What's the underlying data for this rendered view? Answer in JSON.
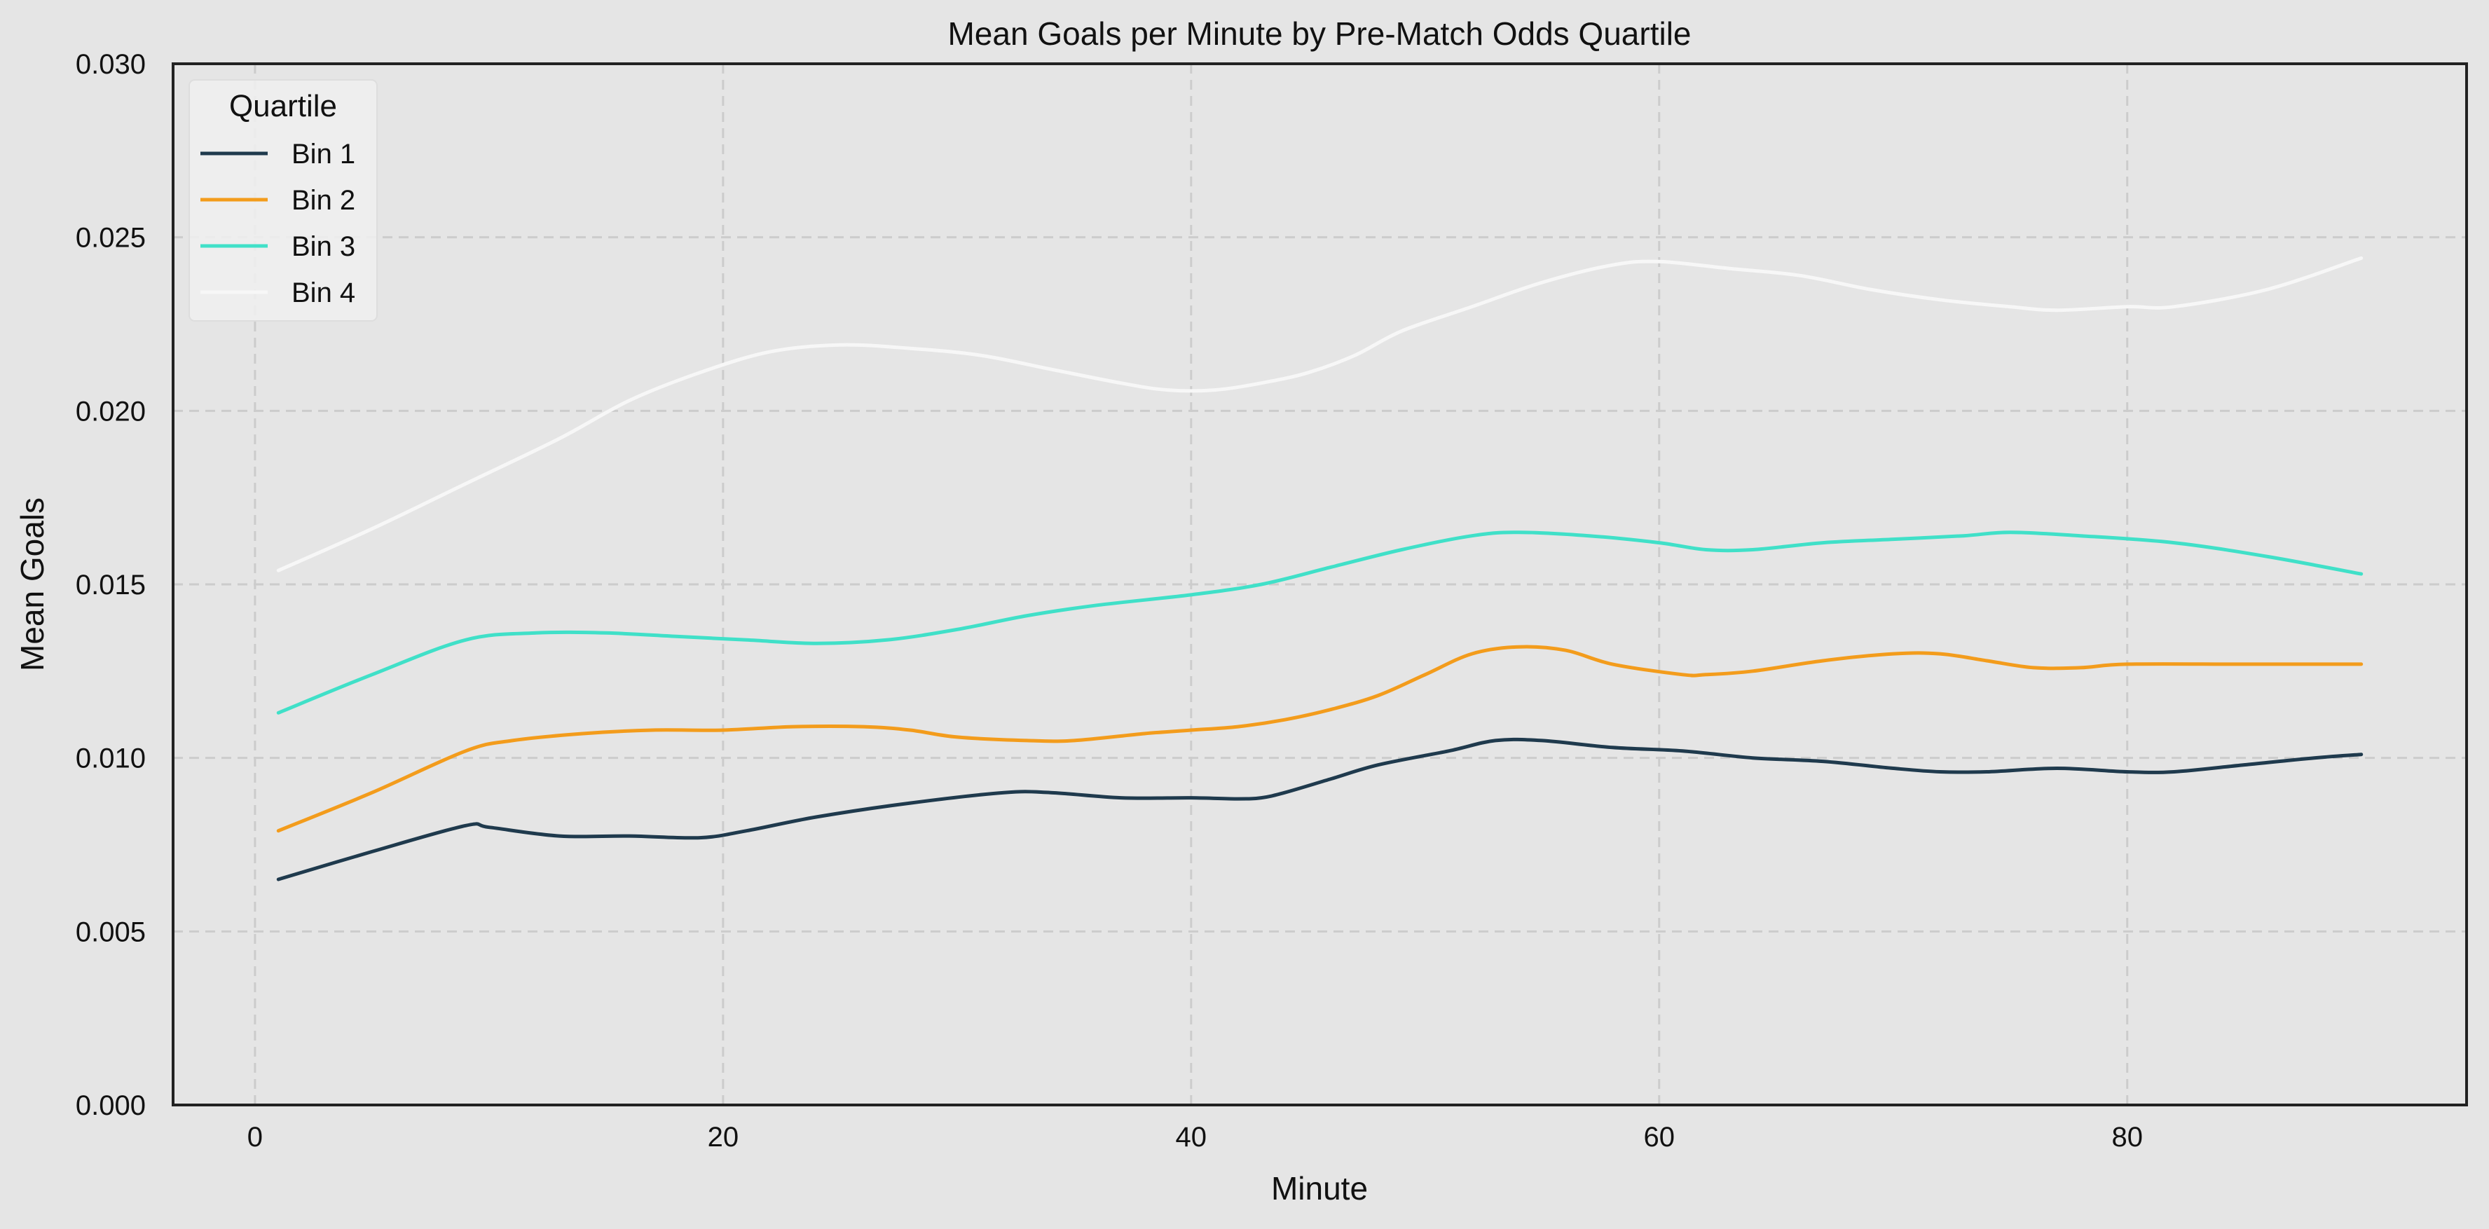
{
  "chart_data": {
    "type": "line",
    "title": "Mean Goals per Minute by Pre-Match Odds Quartile",
    "xlabel": "Minute",
    "ylabel": "Mean Goals",
    "xlim": [
      -3.5,
      94.5
    ],
    "ylim": [
      0.0,
      0.03
    ],
    "xticks": [
      0,
      20,
      40,
      60,
      80
    ],
    "xtick_labels": [
      "0",
      "20",
      "40",
      "60",
      "80"
    ],
    "yticks": [
      0.0,
      0.005,
      0.01,
      0.015,
      0.02,
      0.025,
      0.03
    ],
    "ytick_labels": [
      "0.000",
      "0.005",
      "0.010",
      "0.015",
      "0.020",
      "0.025",
      "0.030"
    ],
    "grid": true,
    "legend": {
      "title": "Quartile",
      "position": "top-left"
    },
    "series": [
      {
        "name": "Bin 1",
        "color": "#1f3a4d",
        "x": [
          1,
          5,
          9,
          10,
          13,
          16,
          19,
          21,
          24,
          28,
          32,
          34,
          37,
          40,
          42,
          43,
          44,
          46,
          48,
          51,
          53,
          55,
          58,
          61,
          64,
          67,
          70,
          72,
          74,
          77,
          80,
          82,
          85,
          88,
          90
        ],
        "y": [
          0.0065,
          0.0073,
          0.00805,
          0.008,
          0.00775,
          0.00775,
          0.0077,
          0.0079,
          0.0083,
          0.0087,
          0.009,
          0.009,
          0.00885,
          0.00885,
          0.00882,
          0.00885,
          0.009,
          0.0094,
          0.0098,
          0.0102,
          0.0105,
          0.0105,
          0.0103,
          0.0102,
          0.01,
          0.0099,
          0.0097,
          0.0096,
          0.0096,
          0.0097,
          0.0096,
          0.0096,
          0.0098,
          0.01,
          0.0101
        ]
      },
      {
        "name": "Bin 2",
        "color": "#f39c1c",
        "x": [
          1,
          5,
          9,
          11,
          14,
          17,
          20,
          23,
          26,
          28,
          30,
          33,
          35,
          38,
          40,
          42,
          44,
          46,
          48,
          50,
          52,
          54,
          56,
          58,
          61,
          62,
          64,
          67,
          70,
          72,
          74,
          76,
          78,
          80,
          85,
          90
        ],
        "y": [
          0.0079,
          0.009,
          0.0102,
          0.0105,
          0.0107,
          0.0108,
          0.0108,
          0.0109,
          0.0109,
          0.0108,
          0.0106,
          0.0105,
          0.0105,
          0.0107,
          0.0108,
          0.0109,
          0.0111,
          0.0114,
          0.0118,
          0.0124,
          0.013,
          0.0132,
          0.0131,
          0.0127,
          0.0124,
          0.0124,
          0.0125,
          0.0128,
          0.013,
          0.013,
          0.0128,
          0.0126,
          0.0126,
          0.0127,
          0.0127,
          0.0127
        ]
      },
      {
        "name": "Bin 3",
        "color": "#40e0c8",
        "x": [
          1,
          5,
          9,
          12,
          15,
          18,
          21,
          24,
          27,
          30,
          33,
          36,
          40,
          43,
          46,
          49,
          52,
          54,
          57,
          60,
          62,
          64,
          67,
          70,
          73,
          75,
          78,
          82,
          86,
          90
        ],
        "y": [
          0.0113,
          0.0124,
          0.0134,
          0.0136,
          0.0136,
          0.0135,
          0.0134,
          0.0133,
          0.0134,
          0.0137,
          0.0141,
          0.0144,
          0.0147,
          0.015,
          0.0155,
          0.016,
          0.0164,
          0.0165,
          0.0164,
          0.0162,
          0.016,
          0.016,
          0.0162,
          0.0163,
          0.0164,
          0.0165,
          0.0164,
          0.0162,
          0.0158,
          0.0153
        ]
      },
      {
        "name": "Bin 4",
        "color": "#f7f7f7",
        "x": [
          1,
          5,
          9,
          13,
          16,
          19,
          22,
          25,
          28,
          31,
          34,
          37,
          39,
          41,
          43,
          45,
          47,
          49,
          52,
          55,
          58,
          60,
          63,
          66,
          69,
          72,
          75,
          77,
          80,
          82,
          86,
          90
        ],
        "y": [
          0.0154,
          0.0166,
          0.0179,
          0.0192,
          0.0203,
          0.0211,
          0.0217,
          0.0219,
          0.0218,
          0.0216,
          0.0212,
          0.0208,
          0.0206,
          0.0206,
          0.0208,
          0.0211,
          0.0216,
          0.0223,
          0.023,
          0.0237,
          0.0242,
          0.0243,
          0.0241,
          0.0239,
          0.0235,
          0.0232,
          0.023,
          0.0229,
          0.023,
          0.023,
          0.0235,
          0.0244
        ]
      }
    ]
  },
  "colors": {
    "background": "#e5e5e5",
    "grid": "#cccccc",
    "axis": "#222222",
    "legend_bg": "#f0f0f0"
  }
}
